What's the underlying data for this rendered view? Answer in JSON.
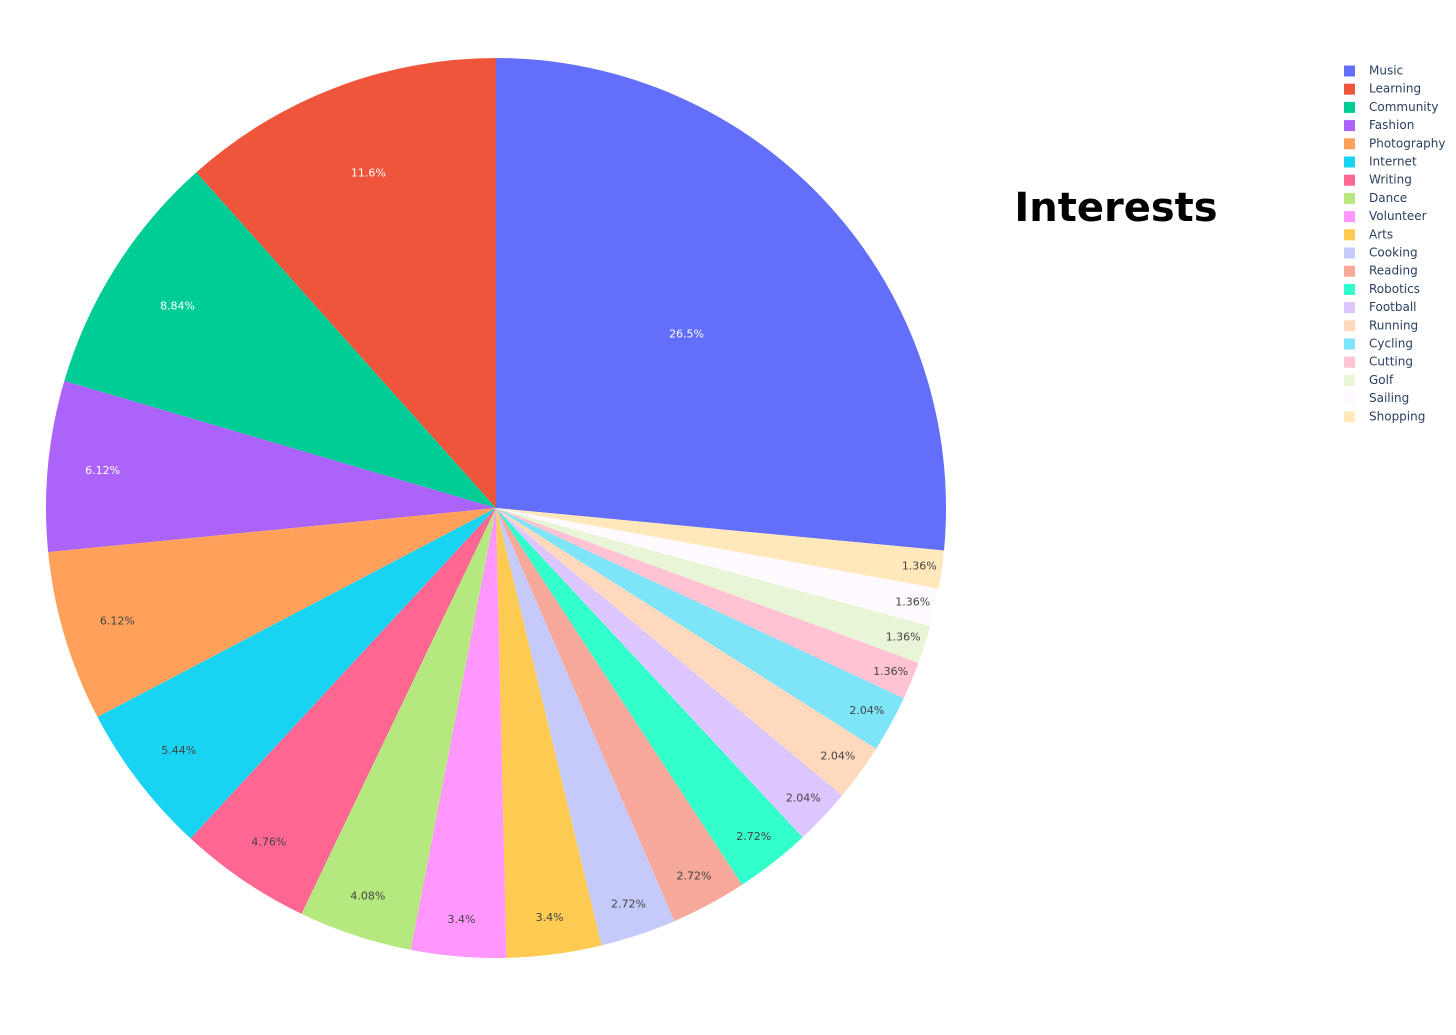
{
  "chart_data": {
    "type": "pie",
    "title": "Interests",
    "categories": [
      "Music",
      "Learning",
      "Community",
      "Fashion",
      "Photography",
      "Internet",
      "Writing",
      "Dance",
      "Volunteer",
      "Arts",
      "Cooking",
      "Reading",
      "Robotics",
      "Football",
      "Running",
      "Cycling",
      "Cutting",
      "Golf",
      "Sailing",
      "Shopping"
    ],
    "values": [
      26.5,
      11.6,
      8.84,
      6.12,
      6.12,
      5.44,
      4.76,
      4.08,
      3.4,
      3.4,
      2.72,
      2.72,
      2.72,
      2.04,
      2.04,
      2.04,
      1.36,
      1.36,
      1.36,
      1.36
    ],
    "value_labels": [
      "26.5%",
      "11.6%",
      "8.84%",
      "6.12%",
      "6.12%",
      "5.44%",
      "4.76%",
      "4.08%",
      "3.4%",
      "3.4%",
      "2.72%",
      "2.72%",
      "2.72%",
      "2.04%",
      "2.04%",
      "2.04%",
      "1.36%",
      "1.36%",
      "1.36%",
      "1.36%"
    ],
    "colors": [
      "#636efa",
      "#ef553b",
      "#00cc96",
      "#ab63fa",
      "#ffa15a",
      "#19d3f3",
      "#ff6692",
      "#b6e880",
      "#ff97ff",
      "#fecb52",
      "#c6cafa",
      "#f6a89a",
      "#33ffcc",
      "#ddc5fd",
      "#ffd9be",
      "#7ee5f8",
      "#ffc3d3",
      "#e8f5d6",
      "#fffaff",
      "#ffe8ba"
    ],
    "legend": "top-right"
  }
}
